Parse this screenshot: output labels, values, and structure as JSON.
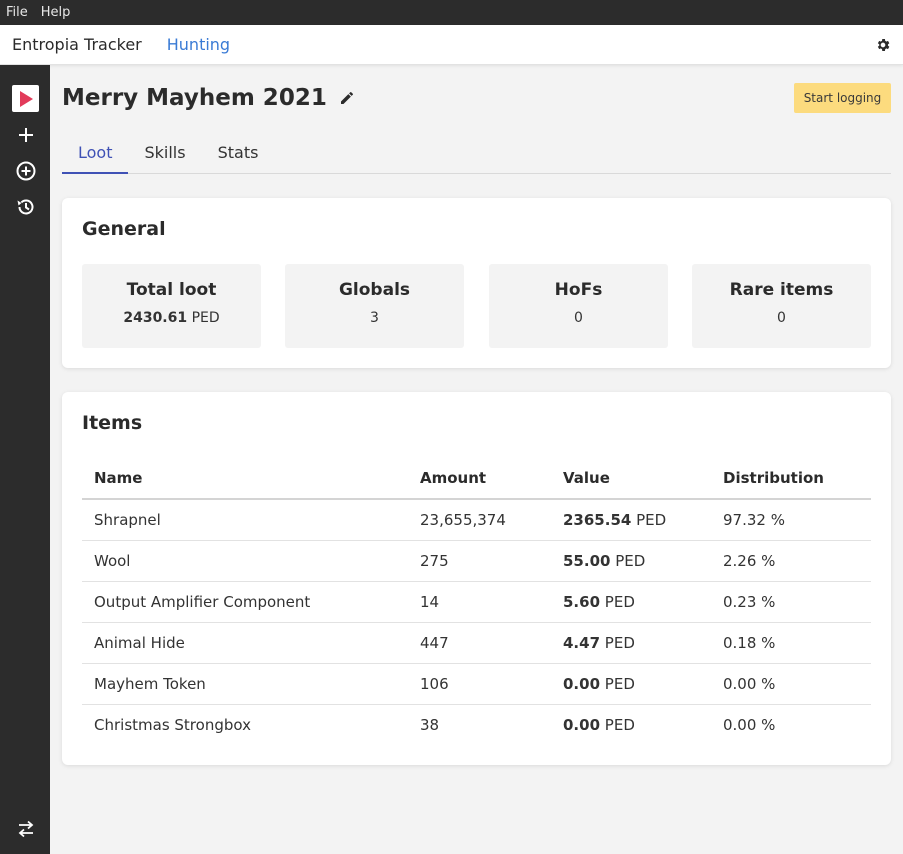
{
  "menubar": {
    "file": "File",
    "help": "Help"
  },
  "appbar": {
    "title": "Entropia Tracker",
    "nav": "Hunting"
  },
  "sidebar": {
    "icons": [
      "play-icon",
      "plus-icon",
      "plus-circle-icon",
      "history-icon",
      "swap-icon"
    ]
  },
  "page": {
    "title": "Merry Mayhem 2021",
    "start_button": "Start logging"
  },
  "tabs": [
    {
      "label": "Loot"
    },
    {
      "label": "Skills"
    },
    {
      "label": "Stats"
    }
  ],
  "general": {
    "title": "General",
    "stats": [
      {
        "label": "Total loot",
        "value": "2430.61",
        "unit": "PED"
      },
      {
        "label": "Globals",
        "value": "3"
      },
      {
        "label": "HoFs",
        "value": "0"
      },
      {
        "label": "Rare items",
        "value": "0"
      }
    ]
  },
  "items": {
    "title": "Items",
    "columns": [
      "Name",
      "Amount",
      "Value",
      "Distribution"
    ],
    "rows": [
      {
        "name": "Shrapnel",
        "amount": "23,655,374",
        "value": "2365.54",
        "unit": "PED",
        "distribution": "97.32 %"
      },
      {
        "name": "Wool",
        "amount": "275",
        "value": "55.00",
        "unit": "PED",
        "distribution": "2.26 %"
      },
      {
        "name": "Output Amplifier Component",
        "amount": "14",
        "value": "5.60",
        "unit": "PED",
        "distribution": "0.23 %"
      },
      {
        "name": "Animal Hide",
        "amount": "447",
        "value": "4.47",
        "unit": "PED",
        "distribution": "0.18 %"
      },
      {
        "name": "Mayhem Token",
        "amount": "106",
        "value": "0.00",
        "unit": "PED",
        "distribution": "0.00 %"
      },
      {
        "name": "Christmas Strongbox",
        "amount": "38",
        "value": "0.00",
        "unit": "PED",
        "distribution": "0.00 %"
      }
    ]
  },
  "colors": {
    "accent": "#3f51b5",
    "link": "#3a7bd5",
    "start_button": "#fcdb7e",
    "play": "#e23b5a",
    "sidebar": "#2c2c2c"
  }
}
